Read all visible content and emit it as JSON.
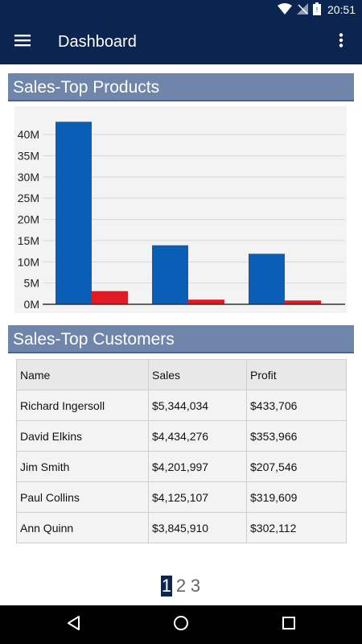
{
  "status_bar": {
    "time": "20:51"
  },
  "app_bar": {
    "title": "Dashboard"
  },
  "products": {
    "header": "Sales-Top Products",
    "chart_data": {
      "type": "bar",
      "categories": [
        "",
        "",
        ""
      ],
      "series": [
        {
          "color": "#0a5eb5",
          "values": [
            43,
            13.9,
            11.9
          ]
        },
        {
          "color": "#e01b24",
          "values": [
            3.1,
            1.1,
            0.9
          ]
        }
      ],
      "y_ticks": [
        "0M",
        "5M",
        "10M",
        "15M",
        "20M",
        "25M",
        "30M",
        "35M",
        "40M"
      ],
      "ylim": [
        0,
        44
      ],
      "grid": true,
      "legend": "none"
    }
  },
  "customers": {
    "header": "Sales-Top Customers",
    "columns": [
      "Name",
      "Sales",
      "Profit"
    ],
    "rows": [
      [
        "Richard Ingersoll",
        "$5,344,034",
        "$433,706"
      ],
      [
        "David Elkins",
        "$4,434,276",
        "$353,966"
      ],
      [
        "Jim Smith",
        "$4,201,997",
        "$207,546"
      ],
      [
        "Paul Collins",
        "$4,125,107",
        "$319,609"
      ],
      [
        "Ann Quinn",
        "$3,845,910",
        "$302,112"
      ]
    ]
  },
  "pager": {
    "pages": [
      "1",
      "2",
      "3"
    ],
    "active": "1"
  },
  "icons": {
    "menu": "hamburger-menu-icon",
    "overflow": "more-vert-icon",
    "back": "back-triangle-icon",
    "home": "home-circle-icon",
    "recents": "recents-square-icon"
  }
}
